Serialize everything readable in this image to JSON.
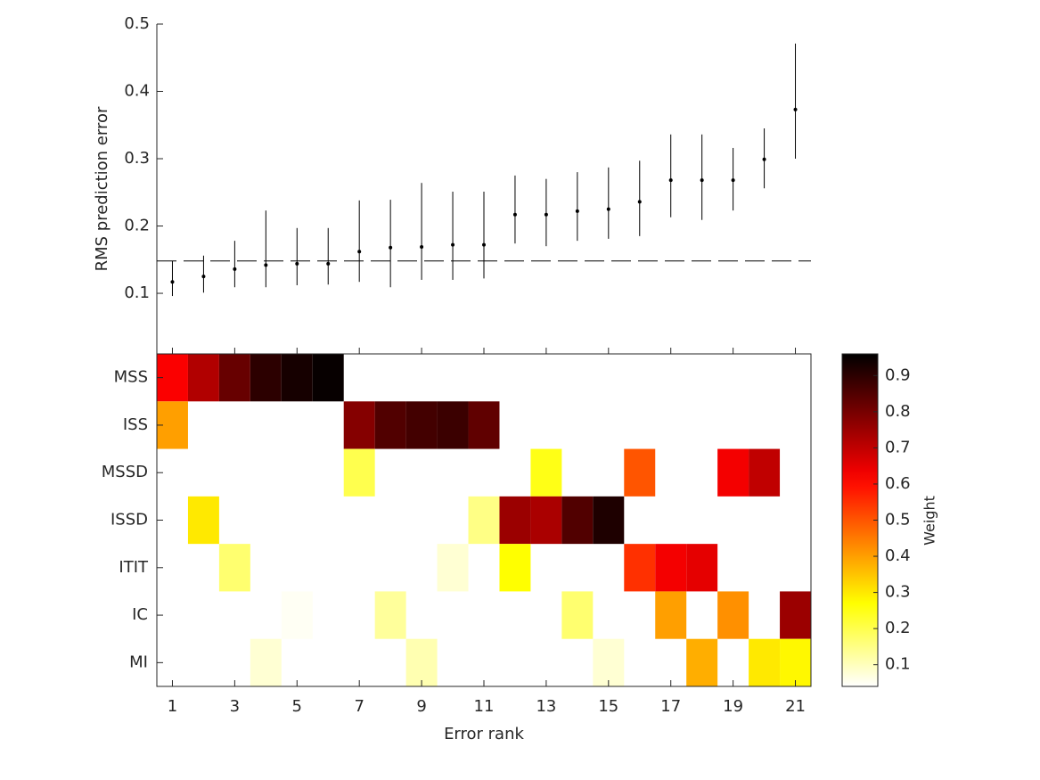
{
  "chart_data": [
    {
      "type": "errorbar",
      "ylabel": "RMS prediction error",
      "x": [
        1,
        2,
        3,
        4,
        5,
        6,
        7,
        8,
        9,
        10,
        11,
        12,
        13,
        14,
        15,
        16,
        17,
        18,
        19,
        20,
        21
      ],
      "values": [
        0.117,
        0.125,
        0.136,
        0.142,
        0.144,
        0.144,
        0.162,
        0.168,
        0.169,
        0.172,
        0.172,
        0.217,
        0.217,
        0.222,
        0.225,
        0.236,
        0.268,
        0.268,
        0.268,
        0.299,
        0.373
      ],
      "lower": [
        0.096,
        0.101,
        0.109,
        0.109,
        0.112,
        0.113,
        0.117,
        0.109,
        0.12,
        0.12,
        0.122,
        0.174,
        0.17,
        0.178,
        0.181,
        0.185,
        0.213,
        0.209,
        0.223,
        0.256,
        0.3
      ],
      "upper": [
        0.148,
        0.156,
        0.178,
        0.223,
        0.197,
        0.197,
        0.238,
        0.239,
        0.264,
        0.251,
        0.251,
        0.275,
        0.27,
        0.28,
        0.287,
        0.297,
        0.336,
        0.336,
        0.316,
        0.345,
        0.471
      ],
      "color": "#000000",
      "hline": 0.148,
      "xlim": [
        0.5,
        21.5
      ],
      "xticks": [
        1,
        3,
        5,
        7,
        9,
        11,
        13,
        15,
        17,
        19,
        21
      ],
      "ylim": [
        0.01,
        0.5
      ],
      "yticks": [
        0.1,
        0.2,
        0.3,
        0.4,
        0.5
      ]
    },
    {
      "type": "heatmap",
      "xlabel": "Error rank",
      "x": [
        1,
        2,
        3,
        4,
        5,
        6,
        7,
        8,
        9,
        10,
        11,
        12,
        13,
        14,
        15,
        16,
        17,
        18,
        19,
        20,
        21
      ],
      "rows": [
        "MSS",
        "ISS",
        "MSSD",
        "ISSD",
        "ITIT",
        "IC",
        "MI"
      ],
      "values": [
        [
          0.62,
          0.72,
          0.82,
          0.9,
          0.93,
          0.95,
          null,
          null,
          null,
          null,
          null,
          null,
          null,
          null,
          null,
          null,
          null,
          null,
          null,
          null,
          null
        ],
        [
          0.4,
          null,
          null,
          null,
          null,
          null,
          0.78,
          0.85,
          0.87,
          0.88,
          0.83,
          null,
          null,
          null,
          null,
          null,
          null,
          null,
          null,
          null,
          null
        ],
        [
          null,
          null,
          null,
          null,
          null,
          null,
          0.2,
          null,
          null,
          null,
          null,
          null,
          0.25,
          null,
          null,
          0.5,
          null,
          null,
          0.63,
          0.7,
          null
        ],
        [
          null,
          0.3,
          null,
          null,
          null,
          null,
          null,
          null,
          null,
          null,
          0.15,
          0.75,
          0.73,
          0.85,
          0.92,
          null,
          null,
          null,
          null,
          null,
          null
        ],
        [
          null,
          null,
          0.17,
          null,
          null,
          null,
          null,
          null,
          null,
          0.08,
          null,
          0.27,
          null,
          null,
          null,
          0.55,
          0.63,
          0.65,
          null,
          null,
          null
        ],
        [
          null,
          null,
          null,
          null,
          0.05,
          null,
          null,
          0.13,
          null,
          null,
          null,
          null,
          null,
          0.17,
          null,
          null,
          0.4,
          null,
          0.42,
          null,
          0.75
        ],
        [
          null,
          null,
          null,
          0.08,
          null,
          null,
          null,
          null,
          0.11,
          null,
          null,
          null,
          null,
          null,
          0.08,
          null,
          null,
          0.38,
          null,
          0.3,
          0.28
        ]
      ],
      "xlim": [
        0.5,
        21.5
      ],
      "xticks": [
        1,
        3,
        5,
        7,
        9,
        11,
        13,
        15,
        17,
        19,
        21
      ],
      "colormap": "hot-reversed",
      "colorbar": {
        "label": "Weight",
        "clim": [
          0.04,
          0.96
        ],
        "ticks": [
          0.1,
          0.2,
          0.3,
          0.4,
          0.5,
          0.6,
          0.7,
          0.8,
          0.9
        ]
      }
    }
  ]
}
